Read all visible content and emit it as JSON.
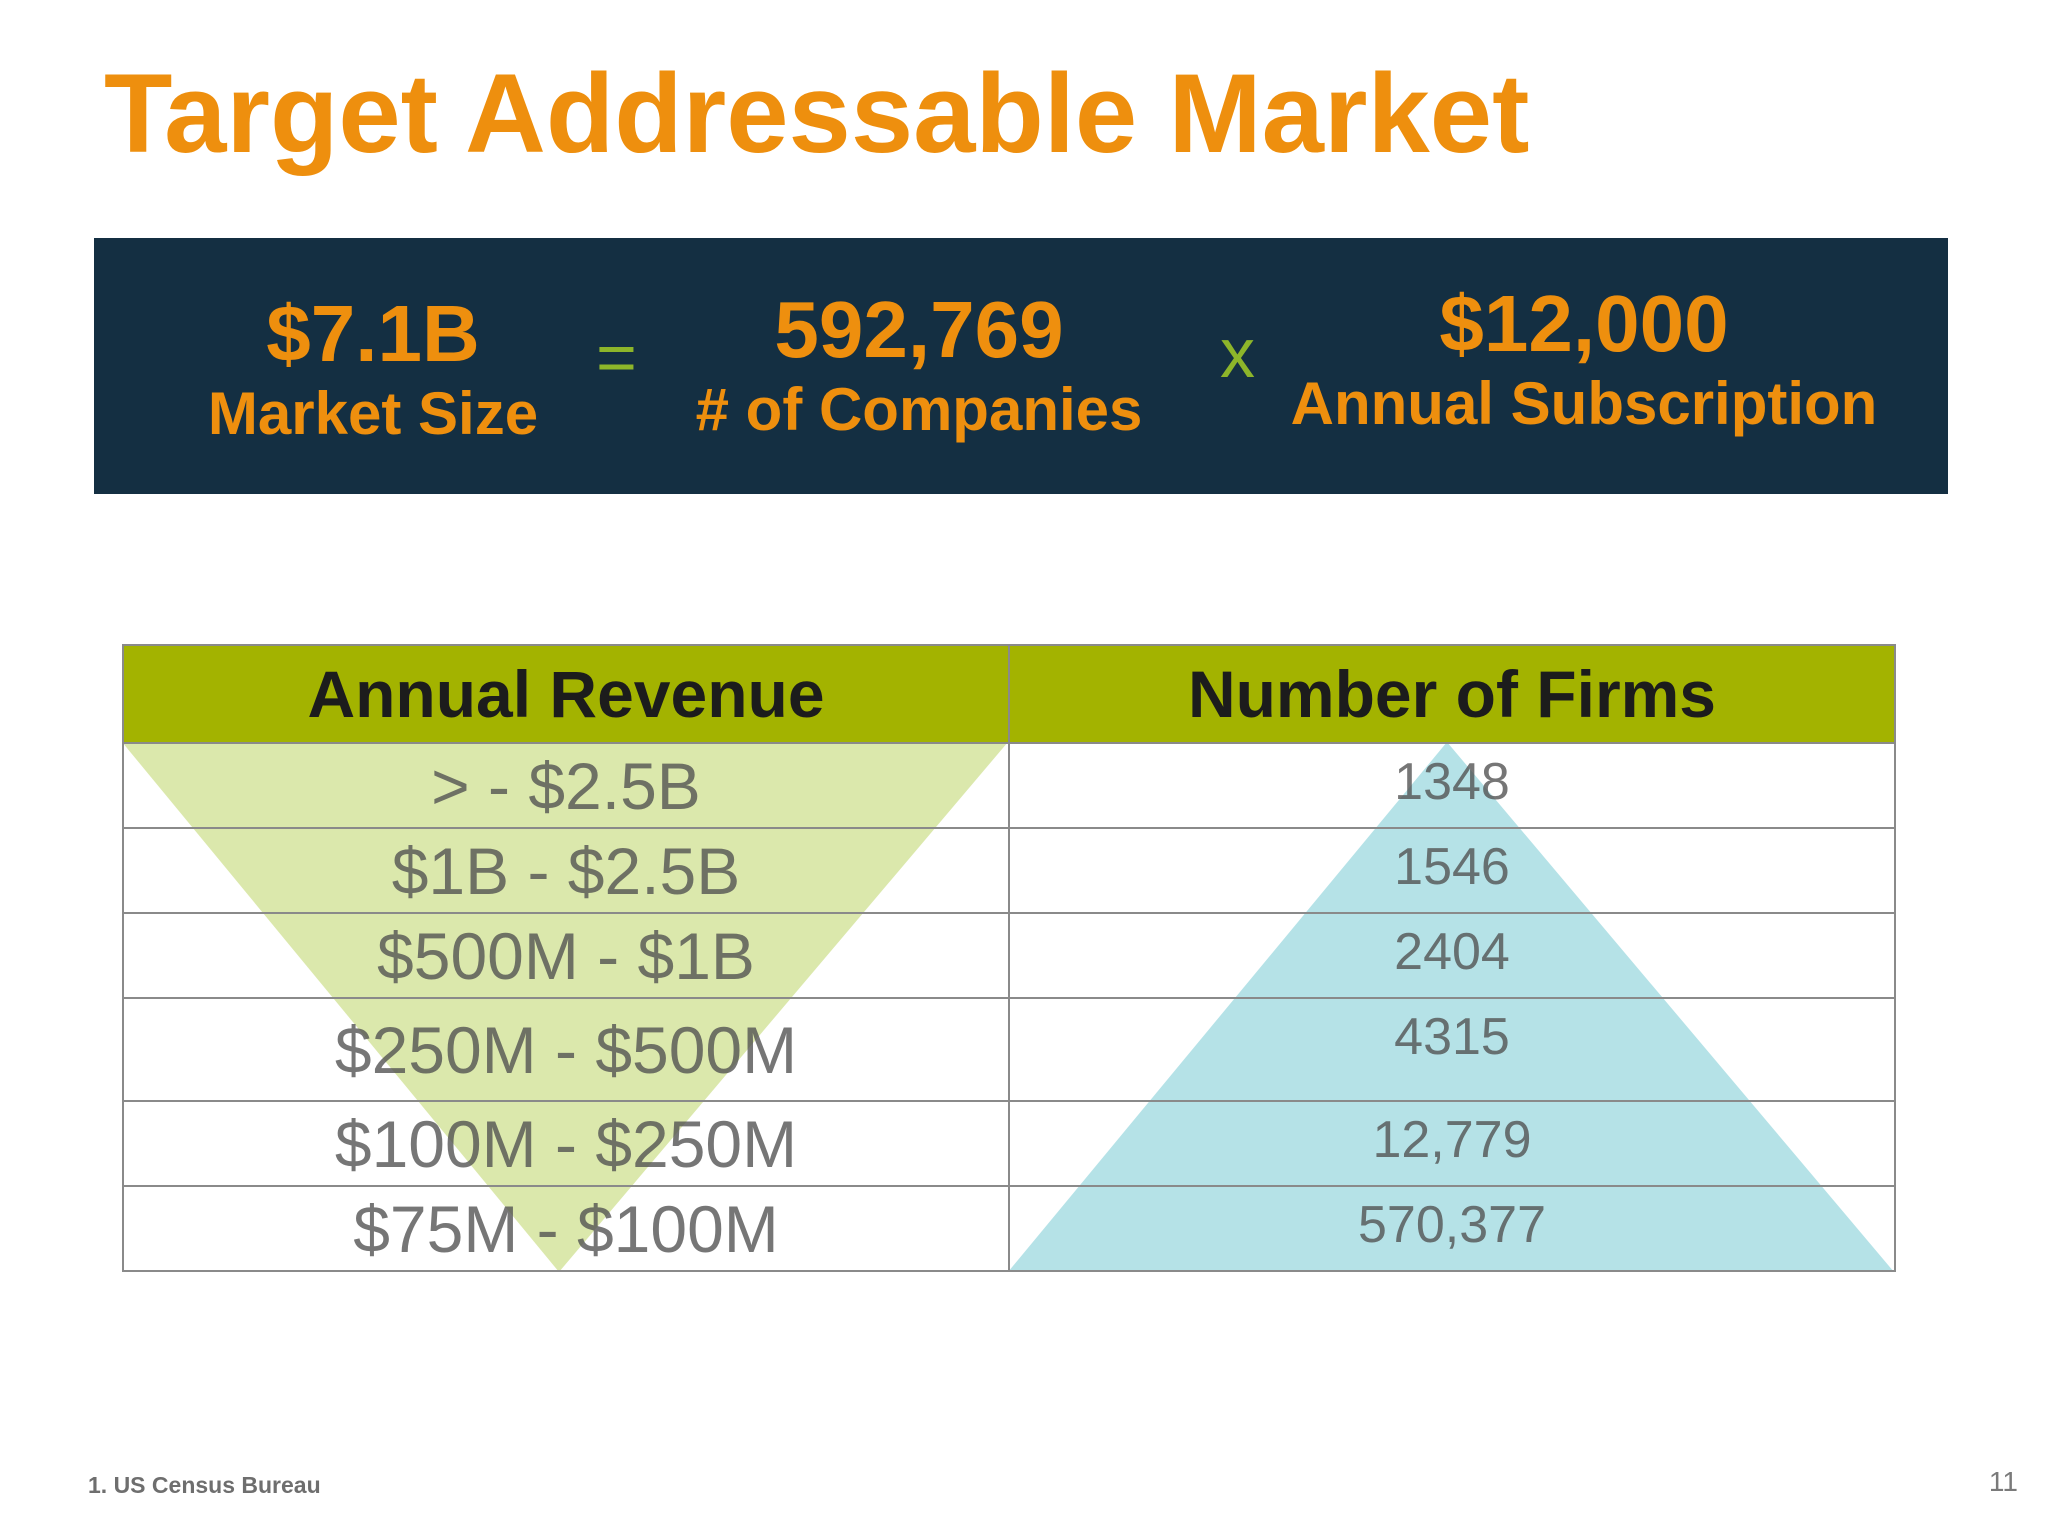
{
  "slide": {
    "title": "Target Addressable Market",
    "footnote": "1. US Census Bureau",
    "page_number": "11"
  },
  "equation": {
    "market_size": {
      "value": "$7.1B",
      "label": "Market Size"
    },
    "equals": "=",
    "companies": {
      "value": "592,769",
      "label": "# of Companies"
    },
    "times": "x",
    "subscription": {
      "value": "$12,000",
      "label": "Annual Subscription"
    }
  },
  "table": {
    "headers": [
      "Annual Revenue",
      "Number of Firms"
    ],
    "rows": [
      {
        "revenue": "> - $2.5B",
        "firms": "1348"
      },
      {
        "revenue": "$1B - $2.5B",
        "firms": "1546"
      },
      {
        "revenue": "$500M - $1B",
        "firms": "2404"
      },
      {
        "revenue": "$250M - $500M",
        "firms": "4315"
      },
      {
        "revenue": "$100M - $250M",
        "firms": "12,779"
      },
      {
        "revenue": "$75M - $100M",
        "firms": "570,377"
      }
    ]
  },
  "colors": {
    "title": "#ee8f0e",
    "banner_bg": "#142f42",
    "operator": "#8db52a",
    "header_bg": "#a3b300",
    "funnel_green": "#d7e6a3",
    "pyramid_blue": "#a8dde3"
  }
}
